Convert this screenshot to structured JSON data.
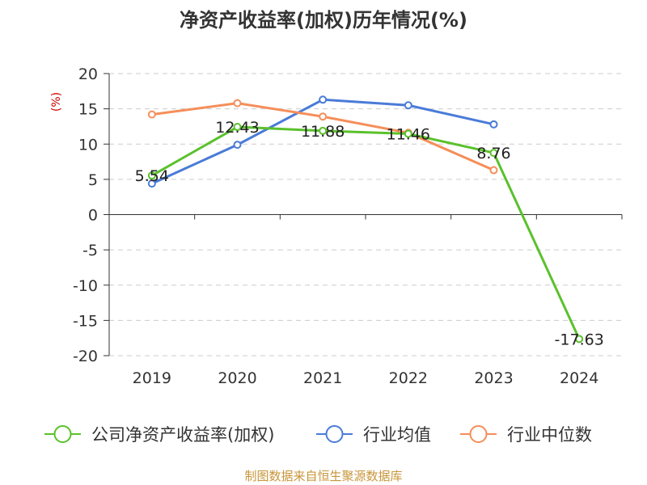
{
  "chart_data": {
    "type": "line",
    "title": "净资产收益率(加权)历年情况(%)",
    "ylabel": "(%)",
    "categories": [
      "2019",
      "2020",
      "2021",
      "2022",
      "2023",
      "2024"
    ],
    "ylim": [
      -20,
      20
    ],
    "yticks": [
      20,
      15,
      10,
      5,
      0,
      -5,
      -10,
      -15,
      -20
    ],
    "grid": true,
    "legend_position": "bottom",
    "series": [
      {
        "name": "公司净资产收益率(加权)",
        "color": "#5ac12c",
        "values": [
          5.54,
          12.43,
          11.88,
          11.46,
          8.76,
          -17.63
        ],
        "labels": [
          "5.54",
          "12.43",
          "11.88",
          "11.46",
          "8.76",
          "-17.63"
        ]
      },
      {
        "name": "行业均值",
        "color": "#4a7bd8",
        "values": [
          4.4,
          9.9,
          16.3,
          15.5,
          12.8,
          null
        ]
      },
      {
        "name": "行业中位数",
        "color": "#f58e5a",
        "values": [
          14.2,
          15.8,
          13.9,
          11.6,
          6.3,
          null
        ]
      }
    ]
  },
  "source": "制图数据来自恒生聚源数据库"
}
